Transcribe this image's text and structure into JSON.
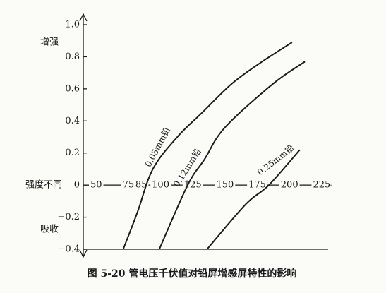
{
  "chart_data": {
    "type": "line",
    "title": "图 5-20  管电压千伏值对铅屏增感屏特性的影响",
    "annotations": [
      "增强",
      "强度不同",
      "吸收"
    ],
    "xlim": [
      40,
      230
    ],
    "xticks": [
      50,
      75,
      85,
      100,
      125,
      150,
      175,
      200,
      225
    ],
    "ylim": [
      -0.4,
      1.0
    ],
    "yticks": [
      {
        "value": 1,
        "label": "1.0"
      },
      0.8,
      0.6,
      0.4,
      0.2,
      0,
      {
        "value": -0.2,
        "label": "−0.2"
      },
      {
        "value": -0.4,
        "label": "−0.4"
      }
    ],
    "series": [
      {
        "name": "0.05mm铅",
        "color": "#1a1a1a",
        "x": [
          71,
          82,
          94,
          113,
          132,
          155,
          177,
          202
        ],
        "values": [
          -0.4,
          -0.17,
          0.1,
          0.3,
          0.45,
          0.63,
          0.76,
          0.89
        ]
      },
      {
        "name": "0.12mm铅",
        "color": "#1a1a1a",
        "x": [
          99,
          121,
          134,
          150,
          187,
          212
        ],
        "values": [
          -0.4,
          0,
          0.16,
          0.36,
          0.63,
          0.77
        ]
      },
      {
        "name": "0.25mm铅",
        "color": "#1a1a1a",
        "x": [
          136,
          166,
          184,
          208
        ],
        "values": [
          -0.4,
          -0.12,
          0,
          0.22
        ]
      }
    ]
  }
}
